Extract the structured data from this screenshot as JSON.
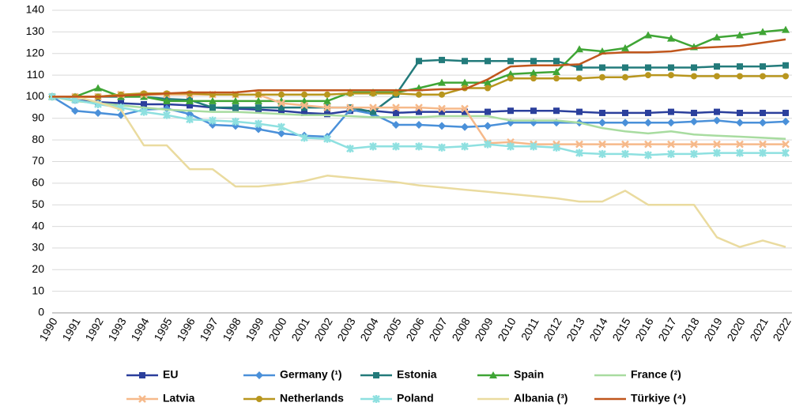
{
  "chart_data": {
    "type": "line",
    "categories": [
      "1990",
      "1991",
      "1992",
      "1993",
      "1994",
      "1995",
      "1996",
      "1997",
      "1998",
      "1999",
      "2000",
      "2001",
      "2002",
      "2003",
      "2004",
      "2005",
      "2006",
      "2007",
      "2008",
      "2009",
      "2010",
      "2011",
      "2012",
      "2013",
      "2014",
      "2015",
      "2016",
      "2017",
      "2018",
      "2019",
      "2020",
      "2021",
      "2022"
    ],
    "ylim": [
      0,
      140
    ],
    "yticks": [
      0,
      10,
      20,
      30,
      40,
      50,
      60,
      70,
      80,
      90,
      100,
      110,
      120,
      130,
      140
    ],
    "grid": true,
    "legend": "bottom",
    "series": [
      {
        "name": "EU",
        "color": "#2b3f9c",
        "marker": "square",
        "values": [
          100,
          98.5,
          97.5,
          97,
          96.5,
          96.5,
          96,
          95,
          94.5,
          94,
          93.5,
          92.5,
          92,
          93.5,
          93.5,
          92.5,
          93,
          93,
          93,
          93,
          93.5,
          93.5,
          93.5,
          93,
          92.5,
          92.5,
          92.5,
          93,
          92.5,
          93,
          92.5,
          92.5,
          92.5
        ]
      },
      {
        "name": "Germany (¹)",
        "color": "#4a90d9",
        "marker": "diamond",
        "values": [
          100,
          93.5,
          92.5,
          91.5,
          94,
          94.5,
          92,
          87,
          86.5,
          85,
          83,
          82,
          81.5,
          94,
          92,
          87,
          87,
          86.5,
          86,
          86.5,
          88,
          88,
          88,
          88,
          88,
          88,
          88,
          88,
          88.5,
          89,
          88,
          88,
          88.5
        ]
      },
      {
        "name": "Estonia",
        "color": "#237b7b",
        "marker": "square",
        "values": [
          100,
          100,
          100,
          100,
          100,
          99,
          98.5,
          95,
          95,
          95,
          95,
          95,
          95,
          95,
          93,
          101,
          116.5,
          117,
          116.5,
          116.5,
          116.5,
          116.5,
          116.5,
          113.5,
          113.5,
          113.5,
          113.5,
          113.5,
          113.5,
          114,
          114,
          114,
          114.5
        ]
      },
      {
        "name": "Spain",
        "color": "#3fa535",
        "marker": "triangle",
        "values": [
          100,
          100,
          104,
          100,
          100,
          98,
          98,
          98,
          98,
          98,
          98,
          98,
          98,
          102,
          102,
          102,
          104,
          106.5,
          106.5,
          106.5,
          110.5,
          111,
          111.5,
          122,
          121,
          122.5,
          128.5,
          127,
          123,
          127.5,
          128.5,
          130,
          131
        ]
      },
      {
        "name": "France (²)",
        "color": "#a8dca0",
        "marker": "none",
        "values": [
          100,
          98,
          97,
          96,
          95,
          94,
          93.5,
          93,
          93,
          92.5,
          92,
          91.5,
          91.5,
          91,
          90.5,
          90.5,
          90.5,
          91,
          91,
          91,
          89,
          89,
          89,
          88,
          85.5,
          84,
          83,
          84,
          82.5,
          82,
          81.5,
          81,
          80.5
        ]
      },
      {
        "name": "Latvia",
        "color": "#f6b98a",
        "marker": "x",
        "values": [
          100,
          100,
          100,
          101,
          101,
          101,
          101,
          101,
          101,
          101,
          97,
          96,
          95,
          95,
          95,
          95,
          95,
          94.5,
          94.5,
          78.5,
          79,
          78,
          78,
          78,
          78,
          78,
          78,
          78,
          78,
          78,
          78,
          78,
          78
        ]
      },
      {
        "name": "Netherlands",
        "color": "#b8961e",
        "marker": "circle",
        "values": [
          100,
          100,
          100,
          101,
          101.5,
          101.5,
          101.5,
          101,
          101,
          101,
          101,
          101,
          101,
          101.5,
          101.5,
          101.5,
          101,
          101,
          104,
          104,
          108.5,
          108.5,
          108.5,
          108.5,
          109,
          109,
          110,
          110,
          109.5,
          109.5,
          109.5,
          109.5,
          109.5
        ]
      },
      {
        "name": "Poland",
        "color": "#8ee0e0",
        "marker": "star",
        "values": [
          100,
          98.5,
          96.5,
          95,
          93,
          91.5,
          89.5,
          89,
          88.5,
          87.5,
          86,
          81,
          80.5,
          76,
          77,
          77,
          77,
          76.5,
          77,
          78,
          77,
          77,
          76.5,
          74,
          73.5,
          73.5,
          73,
          73.5,
          73.5,
          74,
          74,
          74,
          74
        ]
      },
      {
        "name": "Albania (³)",
        "color": "#eadb9f",
        "marker": "none",
        "values": [
          100,
          100,
          97.5,
          94,
          77.5,
          77.5,
          66.5,
          66.5,
          58.5,
          58.5,
          59.5,
          61,
          63.5,
          62.5,
          61.5,
          60.5,
          59,
          58,
          57,
          56,
          55,
          54,
          53,
          51.5,
          51.5,
          56.5,
          50,
          50,
          50,
          35,
          30.5,
          33.5,
          30.5
        ]
      },
      {
        "name": "Türkiye (⁴)",
        "color": "#c0561c",
        "marker": "none",
        "values": [
          100,
          100,
          100,
          100.5,
          101,
          101.5,
          102,
          102,
          102,
          103,
          103,
          103,
          103,
          103,
          103,
          103,
          103,
          103.5,
          103.5,
          108,
          114,
          114.5,
          114.5,
          115,
          120,
          120.5,
          120.5,
          121,
          122.5,
          123,
          123.5,
          125,
          126.5
        ]
      }
    ]
  }
}
